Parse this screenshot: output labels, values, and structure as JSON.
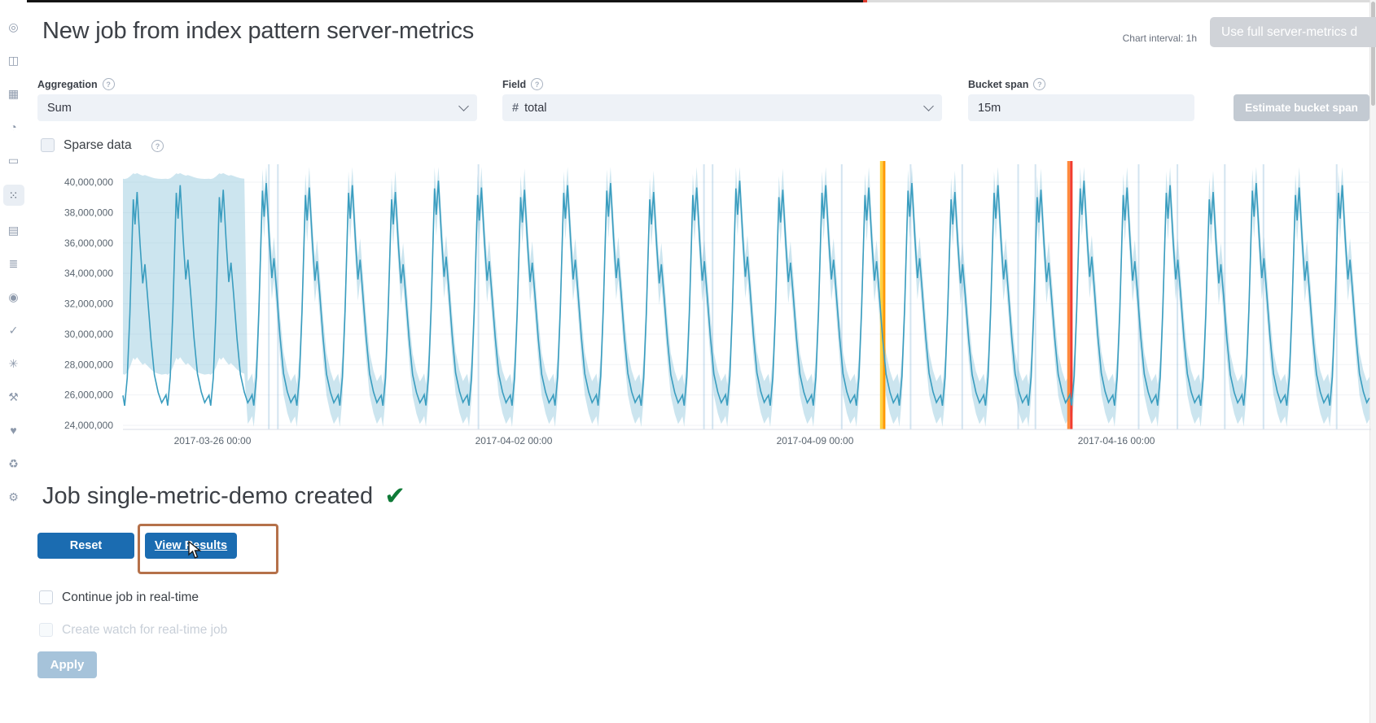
{
  "header": {
    "title": "New job from index pattern server-metrics",
    "chart_interval": "Chart interval: 1h",
    "full_data_button": "Use full server-metrics d"
  },
  "sidebar": {
    "items": [
      {
        "name": "discover",
        "glyph": "◎"
      },
      {
        "name": "visualize",
        "glyph": "◫"
      },
      {
        "name": "dashboard",
        "glyph": "▦"
      },
      {
        "name": "timelion",
        "glyph": "◔"
      },
      {
        "name": "canvas",
        "glyph": "▭"
      },
      {
        "name": "machine-learning",
        "glyph": "⁙",
        "selected": true
      },
      {
        "name": "infrastructure",
        "glyph": "▤"
      },
      {
        "name": "logs",
        "glyph": "≣"
      },
      {
        "name": "apm",
        "glyph": "◉"
      },
      {
        "name": "uptime",
        "glyph": "✓"
      },
      {
        "name": "graph",
        "glyph": "✳"
      },
      {
        "name": "dev-tools",
        "glyph": "⚒"
      },
      {
        "name": "monitoring",
        "glyph": "♥"
      },
      {
        "name": "watcher",
        "glyph": "♻"
      },
      {
        "name": "management",
        "glyph": "⚙"
      }
    ]
  },
  "form": {
    "aggregation": {
      "label": "Aggregation",
      "value": "Sum"
    },
    "field": {
      "label": "Field",
      "icon": "#",
      "value": "total"
    },
    "bucket_span": {
      "label": "Bucket span",
      "value": "15m",
      "estimate_button": "Estimate bucket span"
    },
    "sparse_data_label": "Sparse data"
  },
  "chart_data": {
    "type": "line",
    "title": "",
    "series_name": "sum(total)",
    "y_domain_millions": [
      24,
      40
    ],
    "y_ticks": [
      {
        "label": "40,000,000",
        "value": 40
      },
      {
        "label": "38,000,000",
        "value": 38
      },
      {
        "label": "36,000,000",
        "value": 36
      },
      {
        "label": "34,000,000",
        "value": 34
      },
      {
        "label": "32,000,000",
        "value": 32
      },
      {
        "label": "30,000,000",
        "value": 30
      },
      {
        "label": "28,000,000",
        "value": 28
      },
      {
        "label": "26,000,000",
        "value": 26
      },
      {
        "label": "24,000,000",
        "value": 24
      }
    ],
    "x_ticks": [
      {
        "label": "2017-03-26 00:00",
        "day": 2.08
      },
      {
        "label": "2017-04-02 00:00",
        "day": 9.08
      },
      {
        "label": "2017-04-09 00:00",
        "day": 16.08
      },
      {
        "label": "2017-04-16 00:00",
        "day": 23.08
      }
    ],
    "days_total": 29,
    "cycle_shape": [
      [
        0.0,
        26.0
      ],
      [
        0.04,
        25.3
      ],
      [
        0.1,
        27.2
      ],
      [
        0.16,
        31.5
      ],
      [
        0.24,
        39.3
      ],
      [
        0.28,
        37.6
      ],
      [
        0.33,
        39.8
      ],
      [
        0.4,
        36.2
      ],
      [
        0.46,
        33.6
      ],
      [
        0.51,
        34.9
      ],
      [
        0.57,
        32.8
      ],
      [
        0.65,
        29.8
      ],
      [
        0.73,
        27.4
      ],
      [
        0.82,
        26.2
      ],
      [
        0.9,
        25.5
      ],
      [
        0.96,
        25.8
      ]
    ],
    "day_peak_scale": [
      0.97,
      1.0,
      0.98,
      1.01,
      0.99,
      1.0,
      0.97,
      1.02,
      0.99,
      0.98,
      1.0,
      1.01,
      0.97,
      0.99,
      1.02,
      0.98,
      1.0,
      0.99,
      1.01,
      0.97,
      1.0,
      0.98,
      1.02,
      0.99,
      1.0,
      0.97,
      1.01,
      0.99,
      1.0
    ],
    "band_halfwidth_millions": 1.4,
    "wide_band_until_day": 2.9,
    "wide_band_upper": 40.2,
    "wide_band_lower": 27.3,
    "line_color": "#3a9dbf",
    "band_color": "rgba(141,197,219,0.45)",
    "event_lines": [
      {
        "name": "warning-anomaly-line",
        "day": 17.65,
        "colors": [
          "#ffd23f",
          "#ff9a00"
        ]
      },
      {
        "name": "critical-anomaly-line",
        "day": 22.0,
        "colors": [
          "#ff8a3c",
          "#f23d2e"
        ]
      }
    ],
    "faint_lines_days": [
      3.39,
      3.6,
      8.26,
      13.5,
      13.7,
      16.7,
      18.3,
      19.5,
      20.8,
      21.2,
      23.6,
      24.5,
      25.6,
      26.5,
      28.2
    ],
    "legend": "off",
    "grid": "faint-horizontal"
  },
  "result": {
    "heading": "Job single-metric-demo created",
    "reset_button": "Reset",
    "view_results_button": "View Results",
    "continue_checkbox": "Continue job in real-time",
    "watch_checkbox": "Create watch for real-time job",
    "apply_button": "Apply"
  },
  "colors": {
    "primary_button": "#1b6cb1",
    "disabled_primary_button": "#a6c3da",
    "annotation_highlight": "#b5714a",
    "success_check": "#0f7a37",
    "chart_line": "#3a9dbf"
  }
}
